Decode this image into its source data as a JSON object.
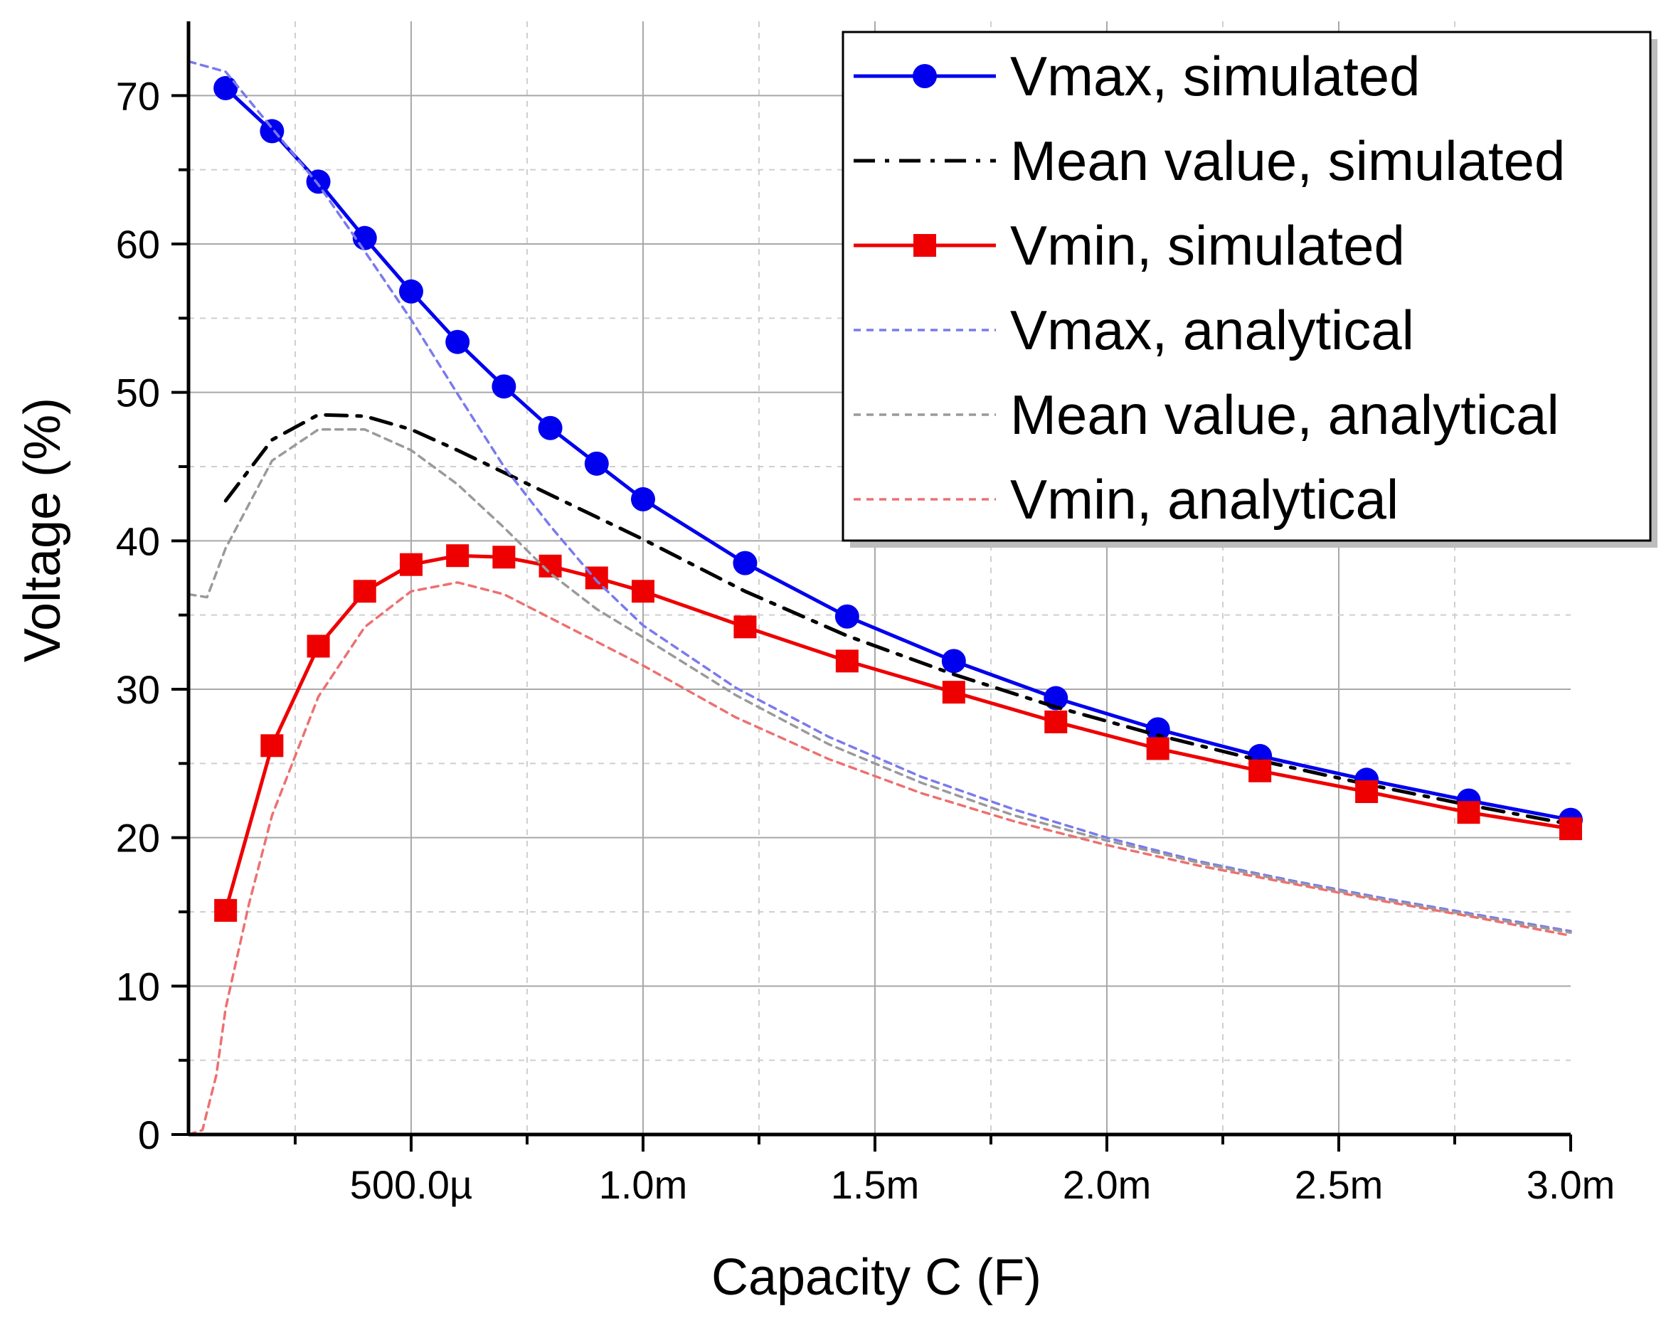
{
  "chart_data": {
    "type": "line",
    "title": "",
    "xlabel": "Capacity C (F)",
    "ylabel": "Voltage (%)",
    "xlim": [
      2e-05,
      0.003
    ],
    "ylim": [
      0,
      75
    ],
    "grid": true,
    "legend_position": "top-right",
    "x_ticks": [
      {
        "value": 0.0005,
        "label": "500.0µ"
      },
      {
        "value": 0.001,
        "label": "1.0m"
      },
      {
        "value": 0.0015,
        "label": "1.5m"
      },
      {
        "value": 0.002,
        "label": "2.0m"
      },
      {
        "value": 0.0025,
        "label": "2.5m"
      },
      {
        "value": 0.003,
        "label": "3.0m"
      }
    ],
    "y_ticks": [
      {
        "value": 0,
        "label": "0"
      },
      {
        "value": 10,
        "label": "10"
      },
      {
        "value": 20,
        "label": "20"
      },
      {
        "value": 30,
        "label": "30"
      },
      {
        "value": 40,
        "label": "40"
      },
      {
        "value": 50,
        "label": "50"
      },
      {
        "value": 60,
        "label": "60"
      },
      {
        "value": 70,
        "label": "70"
      }
    ],
    "series": [
      {
        "name": "Vmax, simulated",
        "color": "#0000ee",
        "style": "solid",
        "marker": "circle",
        "x": [
          0.0001,
          0.0002,
          0.0003,
          0.0004,
          0.0005,
          0.0006,
          0.0007,
          0.0008,
          0.0009,
          0.001,
          0.00122,
          0.00144,
          0.00167,
          0.00189,
          0.00211,
          0.00233,
          0.00256,
          0.00278,
          0.003
        ],
        "y": [
          70.5,
          67.6,
          64.2,
          60.4,
          56.8,
          53.4,
          50.4,
          47.6,
          45.2,
          42.8,
          38.5,
          34.9,
          31.9,
          29.4,
          27.3,
          25.5,
          23.9,
          22.5,
          21.2
        ]
      },
      {
        "name": "Mean value, simulated",
        "color": "#000000",
        "style": "dashdot",
        "marker": "none",
        "x": [
          0.0001,
          0.0002,
          0.0003,
          0.0004,
          0.0005,
          0.0006,
          0.0007,
          0.0008,
          0.0009,
          0.001,
          0.00122,
          0.00144,
          0.00167,
          0.00189,
          0.00211,
          0.00233,
          0.00256,
          0.00278,
          0.003
        ],
        "y": [
          42.7,
          46.8,
          48.5,
          48.4,
          47.5,
          46.1,
          44.6,
          43.1,
          41.6,
          40.1,
          36.6,
          33.6,
          31.0,
          28.8,
          26.9,
          25.2,
          23.6,
          22.2,
          20.9
        ]
      },
      {
        "name": "Vmin, simulated",
        "color": "#ee0000",
        "style": "solid",
        "marker": "square",
        "x": [
          0.0001,
          0.0002,
          0.0003,
          0.0004,
          0.0005,
          0.0006,
          0.0007,
          0.0008,
          0.0009,
          0.001,
          0.00122,
          0.00144,
          0.00167,
          0.00189,
          0.00211,
          0.00233,
          0.00256,
          0.00278,
          0.003
        ],
        "y": [
          15.1,
          26.2,
          32.9,
          36.6,
          38.4,
          39.0,
          38.9,
          38.3,
          37.5,
          36.6,
          34.2,
          31.9,
          29.8,
          27.8,
          26.0,
          24.5,
          23.1,
          21.7,
          20.6
        ]
      },
      {
        "name": "Vmax, analytical",
        "color": "#7a7aee",
        "style": "dotted",
        "marker": "none",
        "x": [
          2e-05,
          0.0001,
          0.0002,
          0.0003,
          0.0004,
          0.0005,
          0.0006,
          0.0007,
          0.0008,
          0.0009,
          0.001,
          0.0012,
          0.0014,
          0.0016,
          0.0018,
          0.002,
          0.0022,
          0.0024,
          0.0026,
          0.0028,
          0.003
        ],
        "y": [
          72.3,
          71.6,
          67.8,
          64.0,
          59.5,
          54.9,
          49.9,
          45.0,
          41.0,
          37.3,
          34.3,
          30.1,
          26.8,
          24.1,
          21.9,
          20.0,
          18.4,
          17.1,
          15.9,
          14.8,
          13.7
        ]
      },
      {
        "name": "Mean value, analytical",
        "color": "#9a9a9a",
        "style": "dotted",
        "marker": "none",
        "x": [
          2e-05,
          6e-05,
          0.0001,
          0.0002,
          0.0003,
          0.0004,
          0.0005,
          0.0006,
          0.0007,
          0.0008,
          0.0009,
          0.001,
          0.0012,
          0.0014,
          0.0016,
          0.0018,
          0.002,
          0.0022,
          0.0024,
          0.0026,
          0.0028,
          0.003
        ],
        "y": [
          36.4,
          36.2,
          39.5,
          45.4,
          47.5,
          47.5,
          46.1,
          43.8,
          40.9,
          37.8,
          35.4,
          33.5,
          29.6,
          26.3,
          23.7,
          21.5,
          19.8,
          18.3,
          17.0,
          15.8,
          14.7,
          13.6
        ]
      },
      {
        "name": "Vmin, analytical",
        "color": "#ee7070",
        "style": "dotted",
        "marker": "none",
        "x": [
          2e-05,
          5e-05,
          8e-05,
          0.0001,
          0.00015,
          0.0002,
          0.0003,
          0.0004,
          0.0005,
          0.0006,
          0.0007,
          0.0008,
          0.0009,
          0.001,
          0.0012,
          0.0014,
          0.0016,
          0.0018,
          0.002,
          0.0022,
          0.0024,
          0.0026,
          0.0028,
          0.003
        ],
        "y": [
          0,
          0.3,
          4.0,
          8.5,
          15.5,
          21.5,
          29.5,
          34.2,
          36.6,
          37.2,
          36.4,
          34.8,
          33.2,
          31.6,
          28.1,
          25.3,
          23.0,
          21.1,
          19.5,
          18.1,
          16.9,
          15.7,
          14.6,
          13.4
        ]
      }
    ]
  }
}
